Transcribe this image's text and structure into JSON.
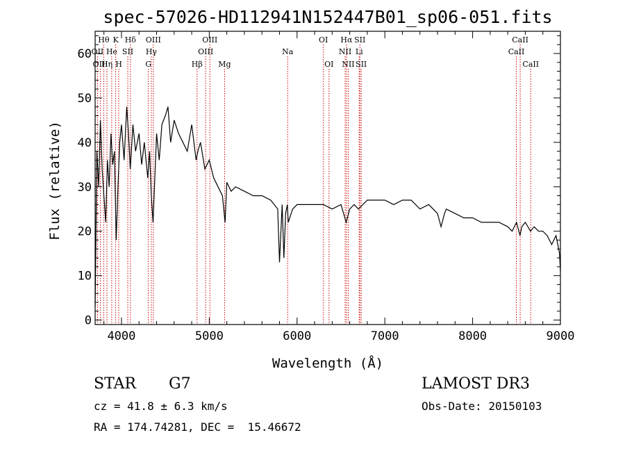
{
  "chart_data": {
    "type": "line",
    "title": "spec-57026-HD112941N152447B01_sp06-051.fits",
    "xlabel": "Wavelength (Å)",
    "ylabel": "Flux (relative)",
    "xlim": [
      3700,
      9000
    ],
    "ylim": [
      -1,
      65
    ],
    "grid": false,
    "xticks": [
      4000,
      5000,
      6000,
      7000,
      8000,
      9000
    ],
    "yticks": [
      0,
      10,
      20,
      30,
      40,
      50,
      60
    ],
    "colors": {
      "spectrum": "#000000",
      "lines": "#cc0000"
    },
    "series": [
      {
        "x": [
          3700,
          3720,
          3740,
          3760,
          3780,
          3800,
          3820,
          3840,
          3860,
          3880,
          3900,
          3920,
          3940,
          3960,
          3980,
          4000,
          4030,
          4060,
          4080,
          4100,
          4130,
          4160,
          4200,
          4230,
          4260,
          4300,
          4320,
          4340,
          4360,
          4400,
          4430,
          4460,
          4500,
          4530,
          4560,
          4600,
          4650,
          4700,
          4750,
          4800,
          4850,
          4870,
          4900,
          4950,
          5000,
          5050,
          5100,
          5150,
          5180,
          5200,
          5250,
          5300,
          5400,
          5500,
          5600,
          5700,
          5780,
          5800,
          5830,
          5850,
          5870,
          5890,
          5900,
          5950,
          6000,
          6100,
          6200,
          6300,
          6400,
          6500,
          6560,
          6600,
          6650,
          6700,
          6800,
          6900,
          7000,
          7100,
          7200,
          7300,
          7400,
          7500,
          7600,
          7640,
          7680,
          7700,
          7800,
          7900,
          8000,
          8100,
          8200,
          8300,
          8400,
          8450,
          8500,
          8540,
          8560,
          8600,
          8660,
          8700,
          8750,
          8800,
          8850,
          8900,
          8950,
          8990,
          9000
        ],
        "y": [
          3,
          38,
          30,
          45,
          34,
          28,
          22,
          36,
          30,
          42,
          35,
          38,
          18,
          30,
          40,
          44,
          36,
          48,
          42,
          34,
          44,
          38,
          42,
          35,
          40,
          32,
          38,
          28,
          22,
          42,
          36,
          44,
          46,
          48,
          40,
          45,
          42,
          40,
          38,
          44,
          36,
          38,
          40,
          34,
          36,
          32,
          30,
          28,
          22,
          31,
          29,
          30,
          29,
          28,
          28,
          27,
          25,
          13,
          26,
          14,
          24,
          26,
          22,
          25,
          26,
          26,
          26,
          26,
          25,
          26,
          22,
          25,
          26,
          25,
          27,
          27,
          27,
          26,
          27,
          27,
          25,
          26,
          24,
          21,
          24,
          25,
          24,
          23,
          23,
          22,
          22,
          22,
          21,
          20,
          22,
          19,
          21,
          22,
          20,
          21,
          20,
          20,
          19,
          17,
          19,
          15,
          11
        ]
      }
    ],
    "line_markers": [
      {
        "label": "Hδ",
        "x": 4102,
        "row": 1
      },
      {
        "label": "K",
        "x": 3934,
        "row": 1
      },
      {
        "label": "Hθ",
        "x": 3798,
        "row": 1
      },
      {
        "label": "OIII",
        "x": 4363,
        "row": 1
      },
      {
        "label": "OIII",
        "x": 5007,
        "row": 1
      },
      {
        "label": "OI",
        "x": 6300,
        "row": 1
      },
      {
        "label": "Hα",
        "x": 6563,
        "row": 1
      },
      {
        "label": "SII",
        "x": 6716,
        "row": 1
      },
      {
        "label": "CaII",
        "x": 8542,
        "row": 1
      },
      {
        "label": "OII",
        "x": 3727,
        "row": 2
      },
      {
        "label": "He",
        "x": 3889,
        "row": 2
      },
      {
        "label": "SII",
        "x": 4072,
        "row": 2
      },
      {
        "label": "Hγ",
        "x": 4340,
        "row": 2
      },
      {
        "label": "OIII",
        "x": 4959,
        "row": 2
      },
      {
        "label": "Na",
        "x": 5893,
        "row": 2
      },
      {
        "label": "NII",
        "x": 6548,
        "row": 2
      },
      {
        "label": "Li",
        "x": 6708,
        "row": 2
      },
      {
        "label": "CaII",
        "x": 8498,
        "row": 2
      },
      {
        "label": "OIII",
        "x": 3760,
        "row": 3
      },
      {
        "label": "Hη",
        "x": 3835,
        "row": 3
      },
      {
        "label": "H",
        "x": 3969,
        "row": 3
      },
      {
        "label": "G",
        "x": 4306,
        "row": 3
      },
      {
        "label": "Hβ",
        "x": 4861,
        "row": 3
      },
      {
        "label": "Mg",
        "x": 5175,
        "row": 3
      },
      {
        "label": "OI",
        "x": 6364,
        "row": 3
      },
      {
        "label": "NII",
        "x": 6583,
        "row": 3
      },
      {
        "label": "SII",
        "x": 6731,
        "row": 3
      },
      {
        "label": "CaII",
        "x": 8662,
        "row": 3
      }
    ]
  },
  "info": {
    "object_type": "STAR",
    "subclass": "G7",
    "survey": "LAMOST DR3",
    "cz": "cz = 41.8 ± 6.3 km/s",
    "obs_date": "Obs-Date: 20150103",
    "coords": "RA = 174.74281, DEC =  15.46672"
  }
}
